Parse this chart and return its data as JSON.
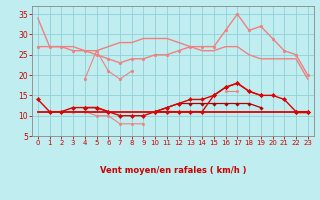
{
  "x": [
    0,
    1,
    2,
    3,
    4,
    5,
    6,
    7,
    8,
    9,
    10,
    11,
    12,
    13,
    14,
    15,
    16,
    17,
    18,
    19,
    20,
    21,
    22,
    23
  ],
  "series": [
    {
      "name": "rafales_max",
      "color": "#f08080",
      "linewidth": 1.0,
      "marker": null,
      "zorder": 2,
      "y": [
        34,
        27,
        27,
        27,
        26,
        26,
        27,
        28,
        28,
        29,
        29,
        29,
        28,
        27,
        26,
        26,
        27,
        27,
        25,
        24,
        24,
        24,
        24,
        19
      ]
    },
    {
      "name": "rafales_peak",
      "color": "#f08080",
      "linewidth": 1.0,
      "marker": "o",
      "markersize": 2.0,
      "zorder": 3,
      "y": [
        27,
        27,
        27,
        26,
        26,
        25,
        24,
        23,
        24,
        24,
        25,
        25,
        26,
        27,
        27,
        27,
        31,
        35,
        31,
        32,
        29,
        26,
        25,
        20
      ]
    },
    {
      "name": "vent_light_segment",
      "color": "#f08080",
      "linewidth": 0.8,
      "marker": "o",
      "markersize": 2.0,
      "zorder": 2,
      "y": [
        null,
        null,
        null,
        null,
        19,
        26,
        21,
        19,
        21,
        null,
        null,
        null,
        null,
        null,
        null,
        null,
        null,
        null,
        null,
        null,
        null,
        null,
        null,
        null
      ]
    },
    {
      "name": "vent_light_low",
      "color": "#f08080",
      "linewidth": 0.8,
      "marker": "o",
      "markersize": 1.8,
      "zorder": 2,
      "y": [
        null,
        11,
        11,
        11,
        11,
        10,
        10,
        8,
        8,
        8,
        null,
        null,
        null,
        null,
        null,
        null,
        16,
        16,
        null,
        null,
        null,
        null,
        null,
        null
      ]
    },
    {
      "name": "vent_moyen_flat",
      "color": "#dd0000",
      "linewidth": 1.3,
      "marker": null,
      "zorder": 4,
      "y": [
        11,
        11,
        11,
        11,
        11,
        11,
        11,
        11,
        11,
        11,
        11,
        11,
        11,
        11,
        11,
        11,
        11,
        11,
        11,
        11,
        11,
        11,
        11,
        11
      ]
    },
    {
      "name": "vent_moyen_main",
      "color": "#dd0000",
      "linewidth": 1.0,
      "marker": "D",
      "markersize": 2.2,
      "zorder": 5,
      "y": [
        14,
        11,
        11,
        12,
        12,
        12,
        11,
        10,
        10,
        10,
        11,
        11,
        11,
        11,
        11,
        15,
        17,
        18,
        16,
        15,
        15,
        14,
        11,
        11
      ]
    },
    {
      "name": "vent_moyen_2",
      "color": "#dd0000",
      "linewidth": 1.0,
      "marker": "D",
      "markersize": 2.0,
      "zorder": 4,
      "y": [
        null,
        null,
        null,
        null,
        12,
        12,
        11,
        null,
        null,
        null,
        11,
        12,
        13,
        14,
        14,
        15,
        17,
        18,
        16,
        15,
        null,
        null,
        11,
        11
      ]
    },
    {
      "name": "vent_moyen_3",
      "color": "#aa0000",
      "linewidth": 0.9,
      "marker": "D",
      "markersize": 1.8,
      "zorder": 3,
      "y": [
        null,
        null,
        null,
        null,
        null,
        null,
        null,
        null,
        null,
        null,
        11,
        12,
        13,
        13,
        13,
        13,
        13,
        13,
        13,
        12,
        null,
        null,
        11,
        11
      ]
    }
  ],
  "arrows": [
    0,
    1,
    2,
    3,
    4,
    5,
    6,
    7,
    8,
    9,
    10,
    11,
    12,
    13,
    14,
    15,
    16,
    17,
    18,
    19,
    20,
    21,
    22,
    23
  ],
  "xlim": [
    -0.5,
    23.5
  ],
  "ylim": [
    5,
    37
  ],
  "yticks": [
    5,
    10,
    15,
    20,
    25,
    30,
    35
  ],
  "xticks": [
    0,
    1,
    2,
    3,
    4,
    5,
    6,
    7,
    8,
    9,
    10,
    11,
    12,
    13,
    14,
    15,
    16,
    17,
    18,
    19,
    20,
    21,
    22,
    23
  ],
  "xlabel": "Vent moyen/en rafales ( km/h )",
  "background_color": "#c0eef0",
  "grid_color": "#90d0d8",
  "tick_color": "#cc0000",
  "label_color": "#cc0000",
  "spine_color": "#888888"
}
